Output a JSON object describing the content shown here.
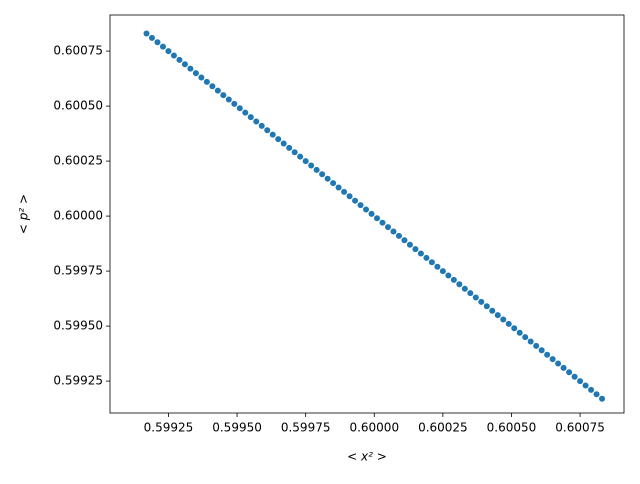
{
  "chart_data": {
    "type": "scatter",
    "x_label": "< x² >",
    "y_label": "< p² >",
    "color": "#1f77b4",
    "xlim": [
      0.599037,
      0.60091
    ],
    "ylim": [
      0.599105,
      0.600914
    ],
    "xticks": [
      0.59925,
      {
        "value": 0.5995,
        "label": "0.59950"
      },
      0.59975,
      {
        "value": 0.6,
        "label": "0.60000"
      },
      0.60025,
      {
        "value": 0.6005,
        "label": "0.60050"
      },
      0.60075
    ],
    "yticks": [
      0.59925,
      {
        "value": 0.5995,
        "label": "0.59950"
      },
      0.59975,
      {
        "value": 0.6,
        "label": "0.60000"
      },
      0.60025,
      {
        "value": 0.6005,
        "label": "0.60050"
      },
      0.60075
    ],
    "x": [
      0.59917,
      0.59919,
      0.59921,
      0.59923,
      0.59925,
      0.59927,
      0.59929,
      0.59931,
      0.59933,
      0.59935,
      0.59937,
      0.59939,
      0.59941,
      0.59943,
      0.59945,
      0.59947,
      0.59949,
      0.59951,
      0.59953,
      0.59955,
      0.59957,
      0.59959,
      0.59961,
      0.59963,
      0.59965,
      0.59967,
      0.59969,
      0.59971,
      0.59973,
      0.59975,
      0.59977,
      0.59979,
      0.59981,
      0.59983,
      0.59985,
      0.59987,
      0.59989,
      0.59991,
      0.59993,
      0.59995,
      0.59997,
      0.59999,
      0.60001,
      0.60003,
      0.60005,
      0.60007,
      0.60009,
      0.60011,
      0.60013,
      0.60015,
      0.60017,
      0.60019,
      0.60021,
      0.60023,
      0.60025,
      0.60027,
      0.60029,
      0.60031,
      0.60033,
      0.60035,
      0.60037,
      0.60039,
      0.60041,
      0.60043,
      0.60045,
      0.60047,
      0.60049,
      0.60051,
      0.60053,
      0.60055,
      0.60057,
      0.60059,
      0.60061,
      0.60063,
      0.60065,
      0.60067,
      0.60069,
      0.60071,
      0.60073,
      0.60075,
      0.60077,
      0.60079,
      0.60081,
      0.60083
    ],
    "values": [
      0.60083,
      0.60081,
      0.60079,
      0.60077,
      0.60075,
      0.60073,
      0.60071,
      0.60069,
      0.60067,
      0.60065,
      0.60063,
      0.60061,
      0.60059,
      0.60057,
      0.60055,
      0.60053,
      0.60051,
      0.60049,
      0.60047,
      0.60045,
      0.60043,
      0.60041,
      0.60039,
      0.60037,
      0.60035,
      0.60033,
      0.60031,
      0.60029,
      0.60027,
      0.60025,
      0.60023,
      0.60021,
      0.60019,
      0.60017,
      0.60015,
      0.60013,
      0.60011,
      0.60009,
      0.60007,
      0.60005,
      0.60003,
      0.60001,
      0.59999,
      0.59997,
      0.59995,
      0.59993,
      0.59991,
      0.59989,
      0.59987,
      0.59985,
      0.59983,
      0.59981,
      0.59979,
      0.59977,
      0.59975,
      0.59973,
      0.59971,
      0.59969,
      0.59967,
      0.59965,
      0.59963,
      0.59961,
      0.59959,
      0.59957,
      0.59955,
      0.59953,
      0.59951,
      0.59949,
      0.59947,
      0.59945,
      0.59943,
      0.59941,
      0.59939,
      0.59937,
      0.59935,
      0.59933,
      0.59931,
      0.59929,
      0.59927,
      0.59925,
      0.59923,
      0.59921,
      0.59919,
      0.59917
    ]
  }
}
